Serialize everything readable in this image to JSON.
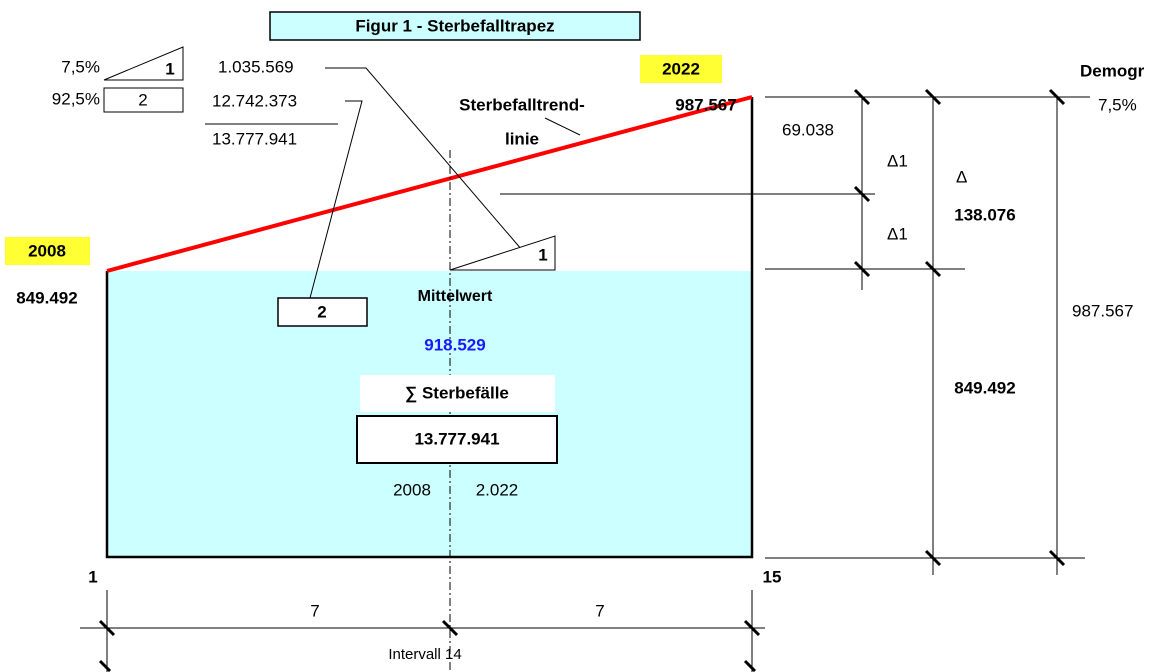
{
  "title": "Figur 1 - Sterbefalltrapez",
  "legend": {
    "share1": "7,5%",
    "label1": "1",
    "share2": "92,5%",
    "label2": "2",
    "value1": "1.035.569",
    "value2": "12.742.373",
    "total": "13.777.941"
  },
  "right_end": {
    "year": "2022",
    "value": "987.567"
  },
  "left_end": {
    "year": "2008",
    "value": "849.492"
  },
  "trend_label": {
    "line1": "Sterbefalltrend-",
    "line2": "linie"
  },
  "side_heading": "Demogr",
  "side_share": "7,5%",
  "delta": {
    "half": "69.038",
    "delta1_top": "Δ1",
    "delta": "Δ",
    "full": "138.076",
    "delta1_bottom": "Δ1"
  },
  "inner": {
    "triangle_label": "1",
    "box_label": "2",
    "mean_label": "Mittelwert",
    "mean_value": "918.529",
    "sum_label": "∑ Sterbefälle",
    "sum_value": "13.777.941",
    "year_from": "2008",
    "year_to": "2.022"
  },
  "dimensions": {
    "base": "849.492",
    "height": "987.567"
  },
  "axis": {
    "start": "1",
    "end": "15",
    "left_half": "7",
    "right_half": "7",
    "interval": "Intervall 14"
  }
}
